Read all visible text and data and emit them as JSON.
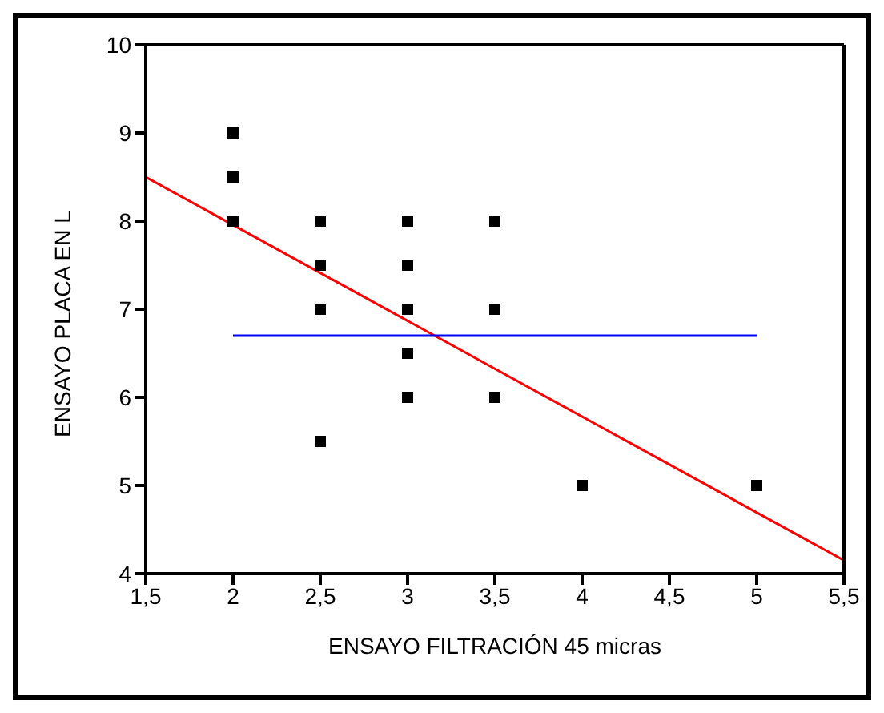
{
  "chart_data": {
    "type": "scatter",
    "xlabel": "ENSAYO FILTRACIÓN 45 micras",
    "ylabel": "ENSAYO PLACA EN L",
    "xlim": [
      1.5,
      5.5
    ],
    "ylim": [
      4,
      10
    ],
    "xticks": [
      {
        "value": 1.5,
        "label": "1,5"
      },
      2,
      {
        "value": 2.5,
        "label": "2,5"
      },
      3,
      {
        "value": 3.5,
        "label": "3,5"
      },
      4,
      {
        "value": 4.5,
        "label": "4,5"
      },
      5,
      {
        "value": 5.5,
        "label": "5,5"
      }
    ],
    "yticks": [
      4,
      5,
      6,
      7,
      8,
      9,
      10
    ],
    "series": [
      {
        "color": "#000000",
        "marker": "square",
        "x": [
          2,
          2,
          2,
          2.5,
          2.5,
          2.5,
          2.5,
          3,
          3,
          3,
          3,
          3,
          3.5,
          3.5,
          3.5,
          4,
          5
        ],
        "values": [
          9,
          8.5,
          8,
          8,
          7.5,
          7,
          5.5,
          8,
          7.5,
          7,
          6.5,
          6,
          8,
          7,
          6,
          5,
          5
        ]
      },
      {
        "type": "line",
        "color": "#ff0000",
        "marker": "none",
        "x": [
          1.5,
          5.5
        ],
        "values": [
          8.5,
          4.15
        ]
      },
      {
        "type": "line",
        "color": "#0000ff",
        "marker": "none",
        "x": [
          2,
          5
        ],
        "values": [
          6.7,
          6.7
        ]
      }
    ]
  }
}
